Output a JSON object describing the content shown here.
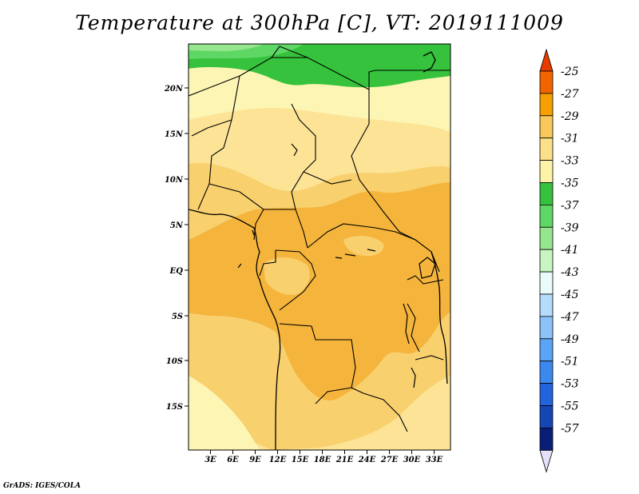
{
  "title": "Temperature at 300hPa [C], VT: 2019111009",
  "credit": "GrADS: IGES/COLA",
  "map": {
    "lat_labels": [
      "20N",
      "15N",
      "10N",
      "5N",
      "EQ",
      "5S",
      "10S",
      "15S"
    ],
    "lon_labels": [
      "3E",
      "6E",
      "9E",
      "12E",
      "15E",
      "18E",
      "21E",
      "24E",
      "27E",
      "30E",
      "33E"
    ]
  },
  "colorbar": {
    "levels": [
      "-25",
      "-27",
      "-29",
      "-31",
      "-33",
      "-35",
      "-37",
      "-39",
      "-41",
      "-43",
      "-45",
      "-47",
      "-49",
      "-51",
      "-53",
      "-55",
      "-57"
    ],
    "colors": [
      "#e63c00",
      "#f26400",
      "#f5a000",
      "#f8c85a",
      "#fce08a",
      "#fff3a8",
      "#36c23c",
      "#5fd765",
      "#96e68f",
      "#c8f5c3",
      "#e9fcf9",
      "#b5dcfc",
      "#8cc2fa",
      "#5aa5f5",
      "#3c88ee",
      "#2264dc",
      "#1446b4",
      "#0a1e78",
      "#e6e0f8"
    ]
  },
  "fill_colors": {
    "band_29": "#f5b43c",
    "band_31": "#f8d06e",
    "band_33": "#fce396",
    "band_35": "#fdf5b4",
    "green_37": "#36c23c",
    "green_39": "#5fd765",
    "green_41": "#96e68f"
  }
}
